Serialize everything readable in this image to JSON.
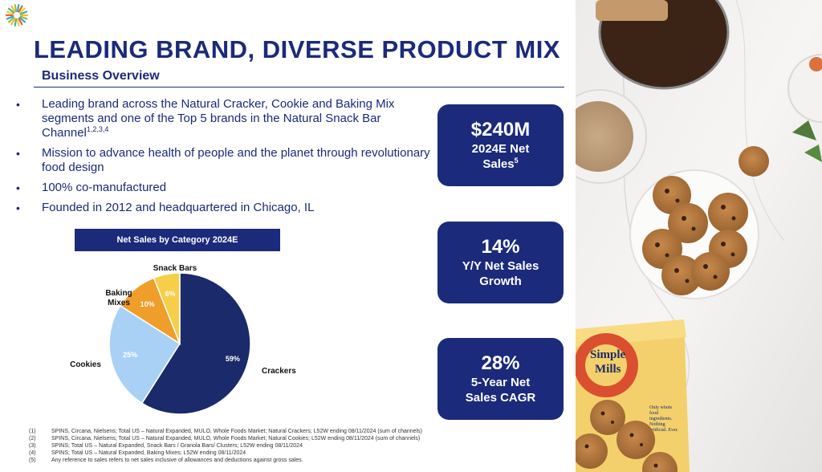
{
  "header": {
    "title": "LEADING BRAND, DIVERSE PRODUCT MIX",
    "subtitle": "Business Overview"
  },
  "bullets": [
    {
      "text": "Leading brand across the Natural Cracker, Cookie and Baking Mix segments and one of the Top 5 brands in the Natural Snack Bar Channel",
      "sup": "1,2,3,4"
    },
    {
      "text": "Mission to advance health of people and the planet through revolutionary food design",
      "sup": ""
    },
    {
      "text": "100% co-manufactured",
      "sup": ""
    },
    {
      "text": "Founded in 2012 and headquartered in Chicago, IL",
      "sup": ""
    }
  ],
  "bullet_glyph": "•",
  "chart_data": {
    "type": "pie",
    "title": "Net Sales by Category 2024E",
    "slices": [
      {
        "label": "Crackers",
        "value": 59,
        "value_label": "59%",
        "color": "#1b2a6b"
      },
      {
        "label": "Cookies",
        "value": 25,
        "value_label": "25%",
        "color": "#a9d1f6"
      },
      {
        "label": "Baking Mixes",
        "value": 10,
        "value_label": "10%",
        "color": "#f09e2a"
      },
      {
        "label": "Snack Bars",
        "value": 6,
        "value_label": "6%",
        "color": "#f7ce47"
      }
    ]
  },
  "kpis": [
    {
      "value": "$240M",
      "label_line1": "2024E Net",
      "label_line2": "Sales",
      "sup": "5"
    },
    {
      "value": "14%",
      "label_line1": "Y/Y Net Sales",
      "label_line2": "Growth",
      "sup": ""
    },
    {
      "value": "28%",
      "label_line1": "5-Year Net",
      "label_line2": "Sales CAGR",
      "sup": ""
    }
  ],
  "footnotes": [
    {
      "num": "(1)",
      "text": "SPINS, Circana, Nielsens; Total US – Natural Expanded, MULO, Whole Foods Market; Natural Crackers; L52W ending 08/11/2024 (sum of channels)"
    },
    {
      "num": "(2)",
      "text": "SPINS, Circana, Nielsens; Total US – Natural Expanded, MULO, Whole Foods Market; Natural Cookies; L52W ending 08/11/2024 (sum of channels)"
    },
    {
      "num": "(3)",
      "text": "SPINS; Total US – Natural Expanded, Snack Bars / Granola Bars/ Clusters; L52W ending 08/11/2024"
    },
    {
      "num": "(4)",
      "text": "SPINS; Total US – Natural Expanded, Baking Mixes; L52W ending 08/11/2024"
    },
    {
      "num": "(5)",
      "text": "Any reference to sales refers to net sales inclusive of allowances and deductions against gross sales."
    }
  ],
  "photo": {
    "box_brand_line1": "Simple",
    "box_brand_line2": "Mills",
    "box_tagline": "Only whole food ingredients. Nothing artificial. Ever."
  },
  "colors": {
    "navy": "#1b2a6b",
    "logo_palette": [
      "#f4b63f",
      "#8cc63f",
      "#3aa3d8",
      "#e9612a",
      "#f7ce47",
      "#4fb58a"
    ]
  },
  "icons": {
    "logo": "sunburst-logo-icon"
  }
}
